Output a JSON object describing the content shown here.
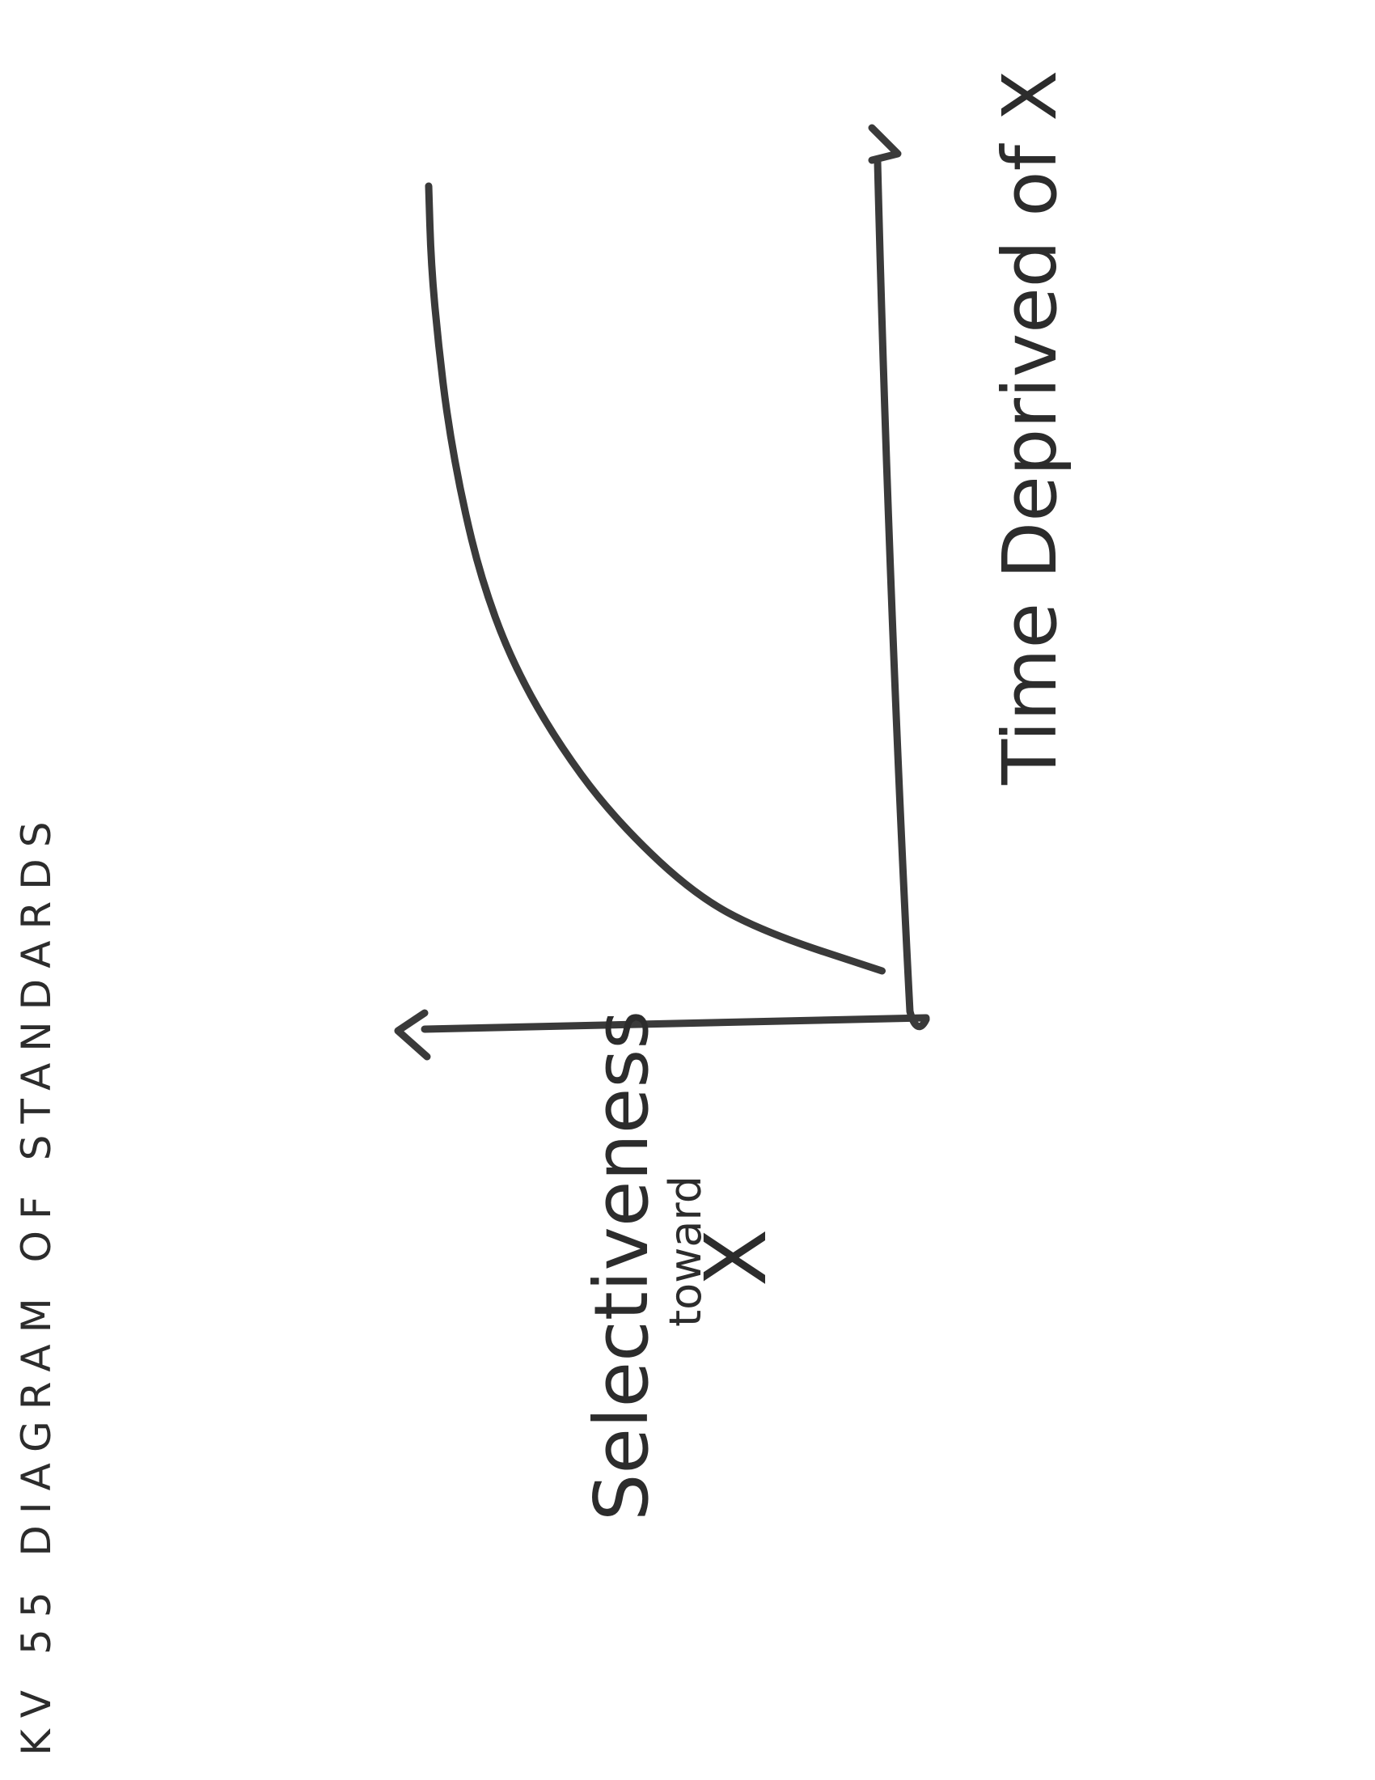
{
  "page": {
    "title": "KV 55   DIAGRAM OF STANDARDS"
  },
  "chart_data": {
    "type": "line",
    "orientation_note": "rotated",
    "xlabel": "Time Deprived of X",
    "ylabel_lines": [
      "Selectiveness",
      "toward",
      "X"
    ],
    "series": [
      {
        "x": [
          0,
          0.05,
          0.1,
          0.2,
          0.3,
          0.4,
          0.5,
          0.6,
          0.7,
          0.8,
          0.9,
          1.0
        ],
        "values": [
          0.05,
          0.3,
          0.45,
          0.62,
          0.74,
          0.83,
          0.89,
          0.93,
          0.96,
          0.98,
          0.995,
          1.0
        ]
      }
    ],
    "xlim": [
      0,
      1
    ],
    "ylim": [
      0,
      1
    ],
    "grid": false,
    "colors": {
      "ink": "#3a3a3a",
      "paper": "#ffffff"
    }
  }
}
